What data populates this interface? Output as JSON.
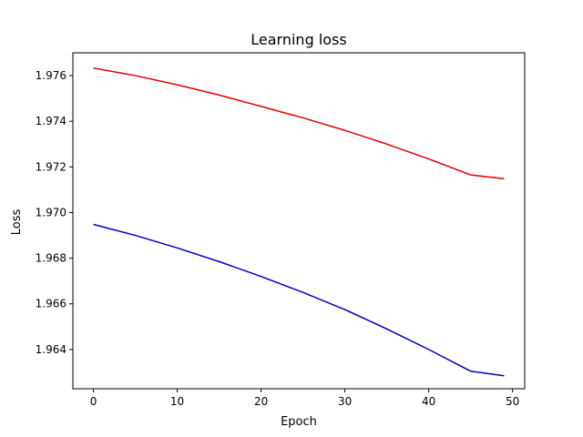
{
  "chart_data": {
    "type": "line",
    "title": "Learning loss",
    "xlabel": "Epoch",
    "ylabel": "Loss",
    "xlim": [
      -2.45,
      51.45
    ],
    "ylim": [
      1.96228,
      1.977
    ],
    "xticks": [
      0,
      10,
      20,
      30,
      40,
      50
    ],
    "yticks": [
      1.964,
      1.966,
      1.968,
      1.97,
      1.972,
      1.974,
      1.976
    ],
    "ytick_labels": [
      "1.964",
      "1.966",
      "1.968",
      "1.970",
      "1.972",
      "1.974",
      "1.976"
    ],
    "grid": false,
    "legend": null,
    "series": [
      {
        "color": "#e00000",
        "x": [
          0,
          5,
          10,
          15,
          20,
          25,
          30,
          35,
          40,
          45,
          49
        ],
        "y": [
          1.97633,
          1.976,
          1.9756,
          1.97515,
          1.97465,
          1.97415,
          1.9736,
          1.973,
          1.97235,
          1.97165,
          1.97148
        ]
      },
      {
        "color": "#0000cc",
        "x": [
          0,
          5,
          10,
          15,
          20,
          25,
          30,
          35,
          40,
          45,
          49
        ],
        "y": [
          1.96948,
          1.969,
          1.96845,
          1.96785,
          1.9672,
          1.9665,
          1.96575,
          1.9649,
          1.964,
          1.96305,
          1.96285
        ]
      }
    ]
  }
}
